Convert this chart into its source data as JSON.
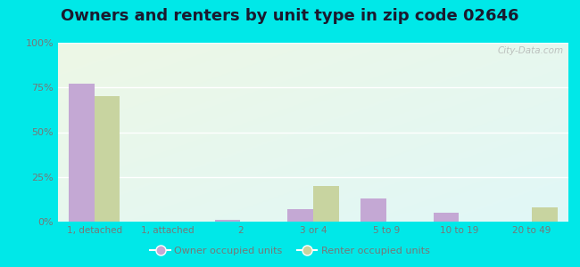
{
  "title": "Owners and renters by unit type in zip code 02646",
  "categories": [
    "1, detached",
    "1, attached",
    "2",
    "3 or 4",
    "5 to 9",
    "10 to 19",
    "20 to 49"
  ],
  "owner_values": [
    77,
    0,
    1,
    7,
    13,
    5,
    0
  ],
  "renter_values": [
    70,
    0,
    0,
    20,
    0,
    0,
    8
  ],
  "owner_color": "#c4a8d4",
  "renter_color": "#c8d4a0",
  "background_outer": "#00e8e8",
  "title_fontsize": 13,
  "title_color": "#1a1a2e",
  "tick_color": "#777777",
  "ylim": [
    0,
    100
  ],
  "yticks": [
    0,
    25,
    50,
    75,
    100
  ],
  "ytick_labels": [
    "0%",
    "25%",
    "50%",
    "75%",
    "100%"
  ],
  "legend_owner": "Owner occupied units",
  "legend_renter": "Renter occupied units",
  "bar_width": 0.35,
  "watermark": "City-Data.com"
}
